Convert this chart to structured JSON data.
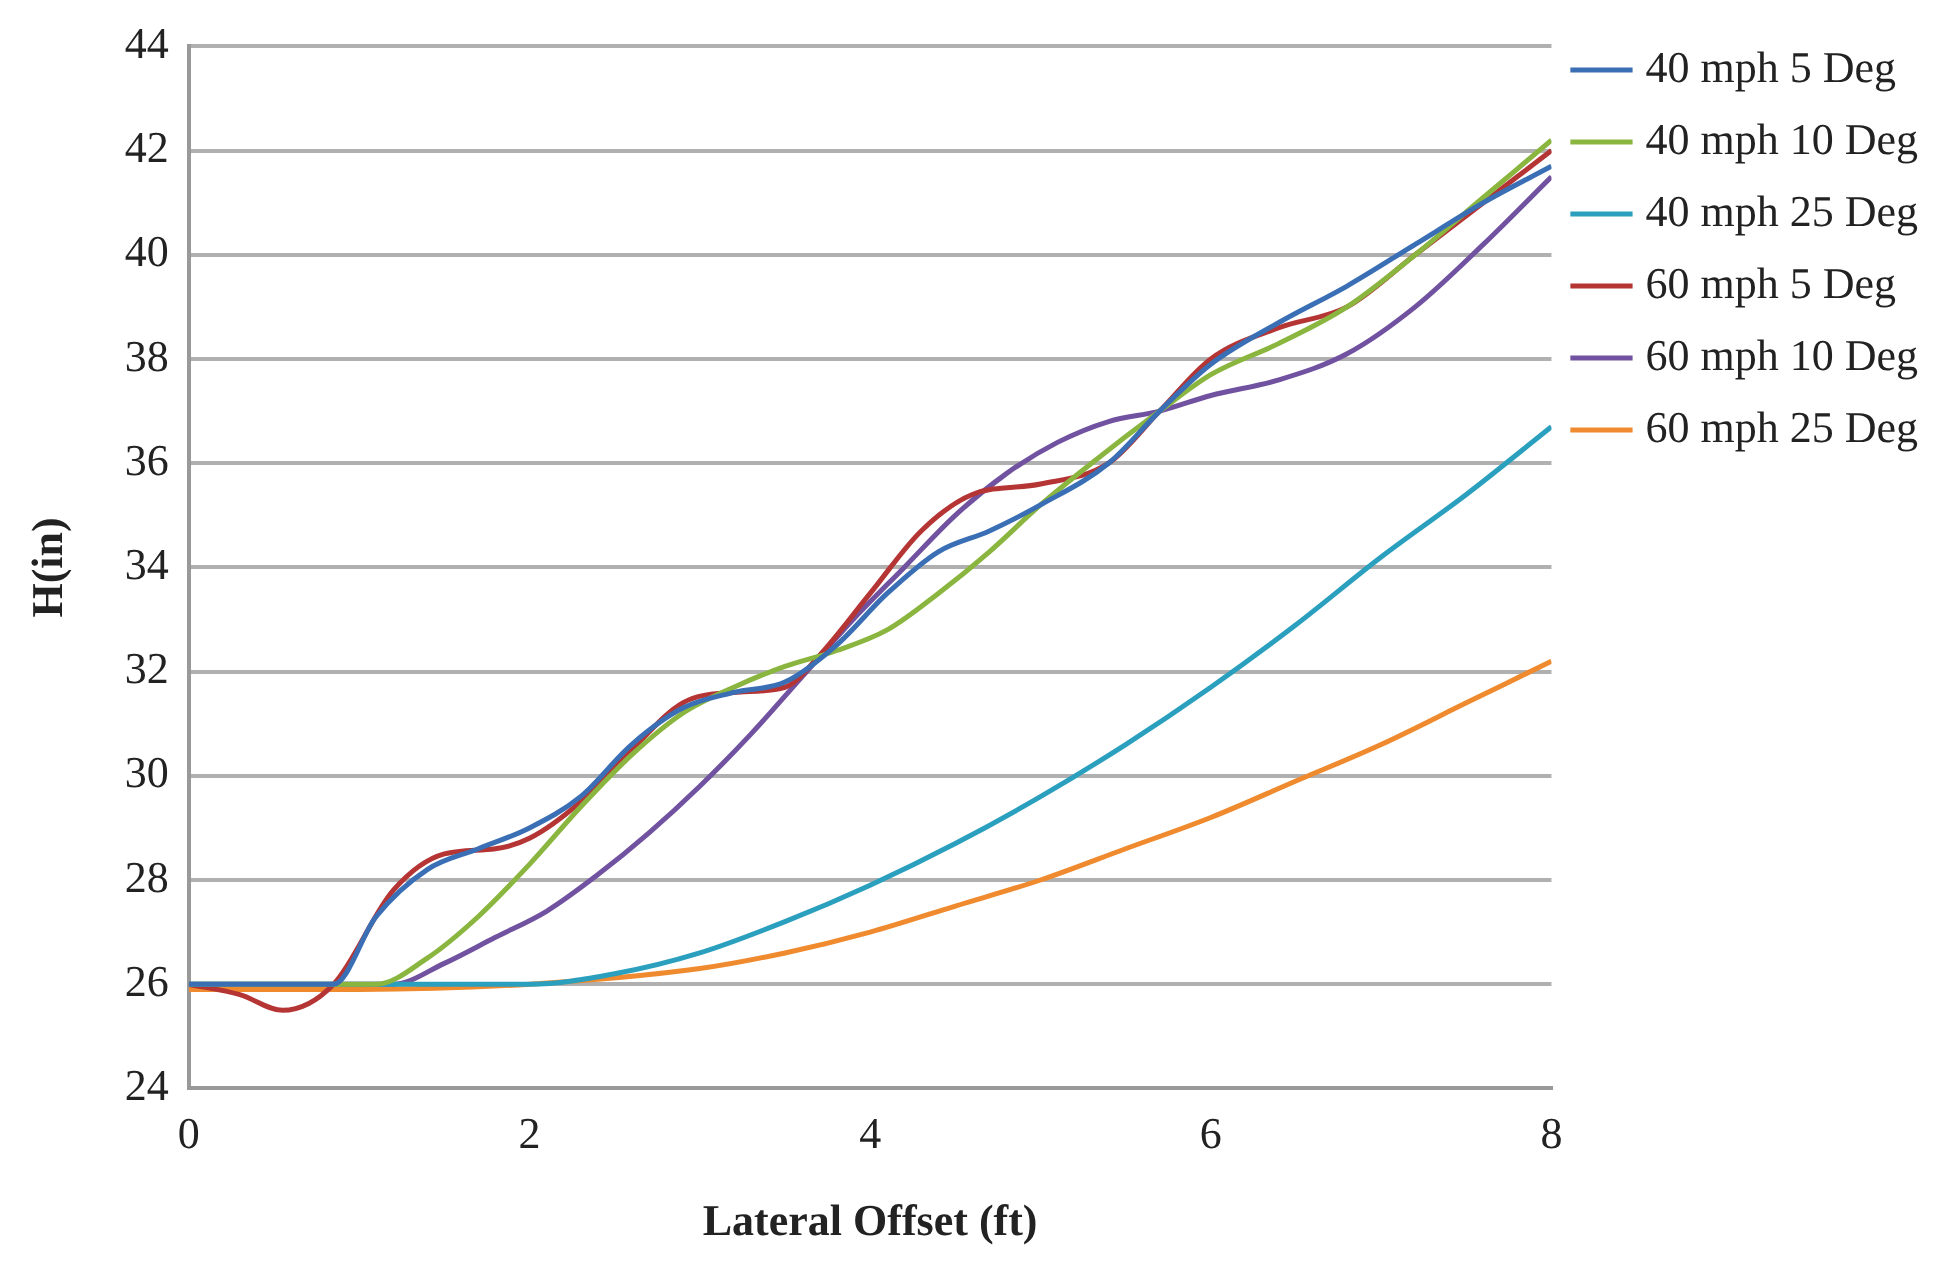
{
  "chart_data": {
    "type": "line",
    "xlabel": "Lateral Offset (ft)",
    "ylabel": "H(in)",
    "xlim": [
      0,
      8
    ],
    "xticks": [
      0,
      2,
      4,
      6,
      8
    ],
    "ylim": [
      24,
      44
    ],
    "yticks": [
      24,
      26,
      28,
      30,
      32,
      34,
      36,
      38,
      40,
      42,
      44
    ],
    "grid": "y",
    "legend": "right",
    "marker": "none",
    "line_style": "solid",
    "series": [
      {
        "name": "40 mph 5 Deg",
        "color": "#3a6fb5",
        "x": [
          0,
          0.85,
          1.1,
          1.4,
          1.7,
          2.0,
          2.3,
          2.6,
          2.9,
          3.2,
          3.5,
          3.8,
          4.1,
          4.4,
          4.7,
          5.0,
          5.4,
          5.7,
          6.0,
          6.4,
          6.8,
          7.2,
          7.6,
          8
        ],
        "values": [
          26,
          26,
          27.3,
          28.2,
          28.6,
          29.0,
          29.6,
          30.6,
          31.3,
          31.6,
          31.8,
          32.5,
          33.5,
          34.3,
          34.7,
          35.2,
          36.0,
          37.0,
          37.9,
          38.7,
          39.4,
          40.2,
          41.0,
          41.7
        ]
      },
      {
        "name": "40 mph 10 Deg",
        "color": "#8ab53f",
        "x": [
          0,
          1.1,
          1.4,
          1.7,
          2.0,
          2.3,
          2.6,
          2.9,
          3.2,
          3.5,
          3.8,
          4.1,
          4.4,
          4.7,
          5.0,
          5.3,
          5.7,
          6.0,
          6.4,
          6.8,
          7.2,
          7.6,
          8
        ],
        "values": [
          26,
          26,
          26.5,
          27.3,
          28.3,
          29.4,
          30.4,
          31.2,
          31.7,
          32.1,
          32.4,
          32.8,
          33.5,
          34.3,
          35.2,
          36.0,
          37.0,
          37.7,
          38.3,
          39.0,
          40.0,
          41.1,
          42.2
        ]
      },
      {
        "name": "40 mph 25 Deg",
        "color": "#2aa0be",
        "x": [
          0,
          1,
          2,
          2.5,
          3,
          3.5,
          4,
          4.5,
          5,
          5.5,
          6,
          6.5,
          7,
          7.5,
          8
        ],
        "values": [
          26,
          26,
          26,
          26.2,
          26.6,
          27.2,
          27.9,
          28.7,
          29.6,
          30.6,
          31.7,
          32.9,
          34.2,
          35.4,
          36.7
        ]
      },
      {
        "name": "60 mph 5 Deg",
        "color": "#b53535",
        "x": [
          0,
          0.3,
          0.55,
          0.85,
          1.2,
          1.5,
          1.8,
          2.0,
          2.3,
          2.6,
          2.9,
          3.2,
          3.5,
          3.7,
          4.0,
          4.3,
          4.6,
          5.0,
          5.4,
          5.7,
          6.0,
          6.4,
          6.8,
          7.2,
          7.6,
          8
        ],
        "values": [
          26,
          25.8,
          25.5,
          26,
          27.8,
          28.5,
          28.6,
          28.8,
          29.5,
          30.5,
          31.4,
          31.6,
          31.7,
          32.3,
          33.5,
          34.7,
          35.4,
          35.6,
          36.0,
          37.0,
          38.0,
          38.6,
          39.0,
          40.0,
          41.0,
          42.0
        ]
      },
      {
        "name": "60 mph 10 Deg",
        "color": "#7052a0",
        "x": [
          0,
          1.2,
          1.5,
          1.8,
          2.1,
          2.4,
          2.7,
          3.0,
          3.3,
          3.6,
          3.9,
          4.2,
          4.5,
          4.8,
          5.1,
          5.4,
          5.7,
          6.0,
          6.4,
          6.8,
          7.2,
          7.6,
          8
        ],
        "values": [
          26,
          26,
          26.4,
          26.9,
          27.4,
          28.1,
          28.9,
          29.8,
          30.8,
          31.9,
          33.0,
          34.0,
          35.0,
          35.8,
          36.4,
          36.8,
          37.0,
          37.3,
          37.6,
          38.1,
          39.0,
          40.2,
          41.5
        ]
      },
      {
        "name": "60 mph 25 Deg",
        "color": "#ef8a2e",
        "x": [
          0,
          1,
          2,
          3,
          3.5,
          4,
          4.5,
          5,
          5.5,
          6,
          6.5,
          7,
          7.5,
          8
        ],
        "values": [
          25.9,
          25.9,
          26.0,
          26.3,
          26.6,
          27.0,
          27.5,
          28.0,
          28.6,
          29.2,
          29.9,
          30.6,
          31.4,
          32.2
        ]
      }
    ]
  }
}
